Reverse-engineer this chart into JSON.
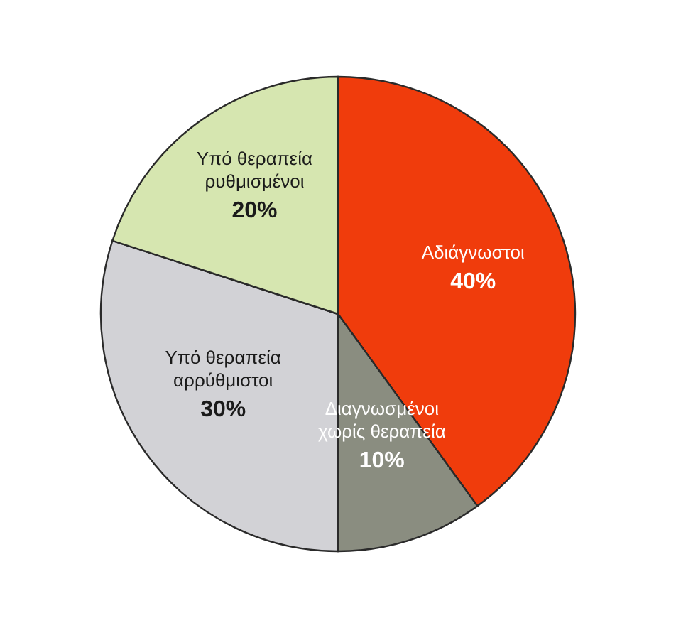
{
  "chart_data": {
    "type": "pie",
    "categories": [
      "Αδιάγνωστοι",
      "Διαγνωσμένοι χωρίς θεραπεία",
      "Υπό θεραπεία αρρύθμιστοι",
      "Υπό θεραπεία ρυθμισμένοι"
    ],
    "values": [
      40,
      10,
      30,
      20
    ],
    "colors": [
      "#f03c0c",
      "#8a8d80",
      "#d2d2d6",
      "#d6e6b0"
    ],
    "value_labels": [
      "40%",
      "10%",
      "30%",
      "20%"
    ]
  }
}
